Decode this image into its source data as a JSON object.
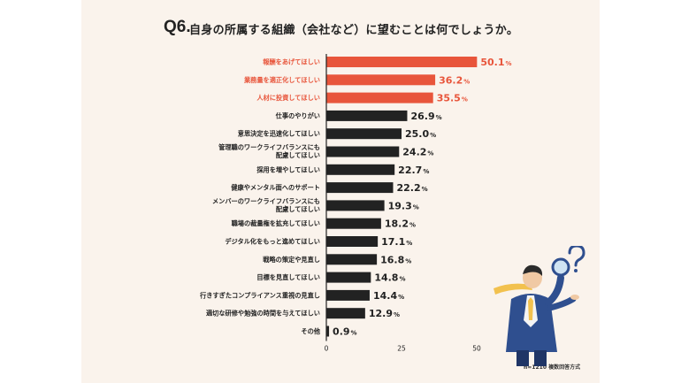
{
  "question": {
    "label": "Q6.",
    "text": "自身の所属する組織（会社など）に望むことは何でしょうか。"
  },
  "footnote": "n=1210  複数回答方式",
  "colors": {
    "highlight": "#e8553b",
    "default_bar": "#222222",
    "background": "#faf3ec"
  },
  "chart_data": {
    "type": "bar",
    "orientation": "horizontal",
    "unit": "%",
    "categories": [
      [
        "報酬をあげてほしい"
      ],
      [
        "業務量を適正化してほしい"
      ],
      [
        "人材に投資してほしい"
      ],
      [
        "仕事のやりがい"
      ],
      [
        "意思決定を迅速化してほしい"
      ],
      [
        "管理職のワークライフバランスにも",
        "配慮してほしい"
      ],
      [
        "採用を増やしてほしい"
      ],
      [
        "健康やメンタル面へのサポート"
      ],
      [
        "メンバーのワークライフバランスにも",
        "配慮してほしい"
      ],
      [
        "職場の裁量権を拡充してほしい"
      ],
      [
        "デジタル化をもっと進めてほしい"
      ],
      [
        "戦略の策定や見直し"
      ],
      [
        "目標を見直してほしい"
      ],
      [
        "行きすぎたコンプライアンス重視の見直し"
      ],
      [
        "適切な研修や勉強の時間を与えてほしい"
      ],
      [
        "その他"
      ]
    ],
    "values": [
      50.1,
      36.2,
      35.5,
      26.9,
      25.0,
      24.2,
      22.7,
      22.2,
      19.3,
      18.2,
      17.1,
      16.8,
      14.8,
      14.4,
      12.9,
      0.9
    ],
    "value_labels": [
      "50.1",
      "36.2",
      "35.5",
      "26.9",
      "25.0",
      "24.2",
      "22.7",
      "22.2",
      "19.3",
      "18.2",
      "17.1",
      "16.8",
      "14.8",
      "14.4",
      "12.9",
      "0.9"
    ],
    "highlighted": [
      true,
      true,
      true,
      false,
      false,
      false,
      false,
      false,
      false,
      false,
      false,
      false,
      false,
      false,
      false,
      false
    ],
    "xlim": [
      0,
      50
    ],
    "xticks": [
      "0",
      "25",
      "50"
    ],
    "grid": false
  }
}
